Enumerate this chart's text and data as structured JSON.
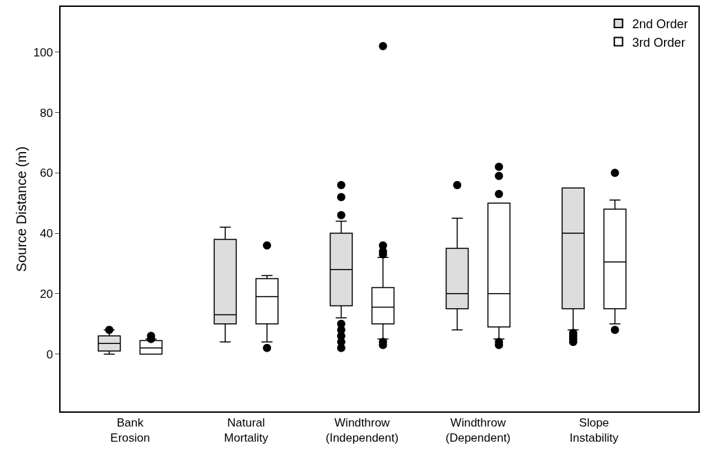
{
  "chart_data": {
    "type": "box",
    "ylabel": "Source Distance (m)",
    "categories": [
      "Bank\nErosion",
      "Natural\nMortality",
      "Windthrow\n(Independent)",
      "Windthrow\n(Dependent)",
      "Slope\nInstability"
    ],
    "ylim": [
      -19,
      115
    ],
    "yticks": [
      0,
      20,
      40,
      60,
      80,
      100
    ],
    "grid": false,
    "legend": "top right",
    "series": [
      {
        "name": "2nd Order",
        "color": "#dddddd",
        "boxes": [
          {
            "low": 0,
            "q1": 1,
            "median": 3.5,
            "q3": 6,
            "high": 8,
            "outliers": [
              8
            ]
          },
          {
            "low": 4,
            "q1": 10,
            "median": 13,
            "q3": 38,
            "high": 42
          },
          {
            "low": 12,
            "q1": 16,
            "median": 28,
            "q3": 40,
            "high": 44,
            "outliers": [
              46,
              52,
              56,
              2,
              4,
              6,
              8,
              10
            ]
          },
          {
            "low": 8,
            "q1": 15,
            "median": 20,
            "q3": 35,
            "high": 45,
            "outliers": [
              56
            ]
          },
          {
            "low": 8,
            "q1": 15,
            "median": 40,
            "q3": 55,
            "high": 55,
            "outliers": [
              4,
              5,
              6,
              7
            ]
          }
        ]
      },
      {
        "name": "3rd Order",
        "color": "#ffffff",
        "boxes": [
          {
            "low": 0,
            "q1": 0,
            "median": 2,
            "q3": 4.5,
            "high": 5,
            "outliers": [
              5,
              6
            ]
          },
          {
            "low": 4,
            "q1": 10,
            "median": 19,
            "q3": 25,
            "high": 26,
            "outliers": [
              36,
              2
            ]
          },
          {
            "low": 5,
            "q1": 10,
            "median": 15.5,
            "q3": 22,
            "high": 32,
            "outliers": [
              33,
              34,
              36,
              102,
              3,
              4
            ]
          },
          {
            "low": 5,
            "q1": 9,
            "median": 20,
            "q3": 50,
            "high": 50,
            "outliers": [
              53,
              59,
              62,
              3,
              4
            ]
          },
          {
            "low": 10,
            "q1": 15,
            "median": 30.5,
            "q3": 48,
            "high": 51,
            "outliers": [
              60,
              8
            ]
          }
        ]
      }
    ]
  }
}
